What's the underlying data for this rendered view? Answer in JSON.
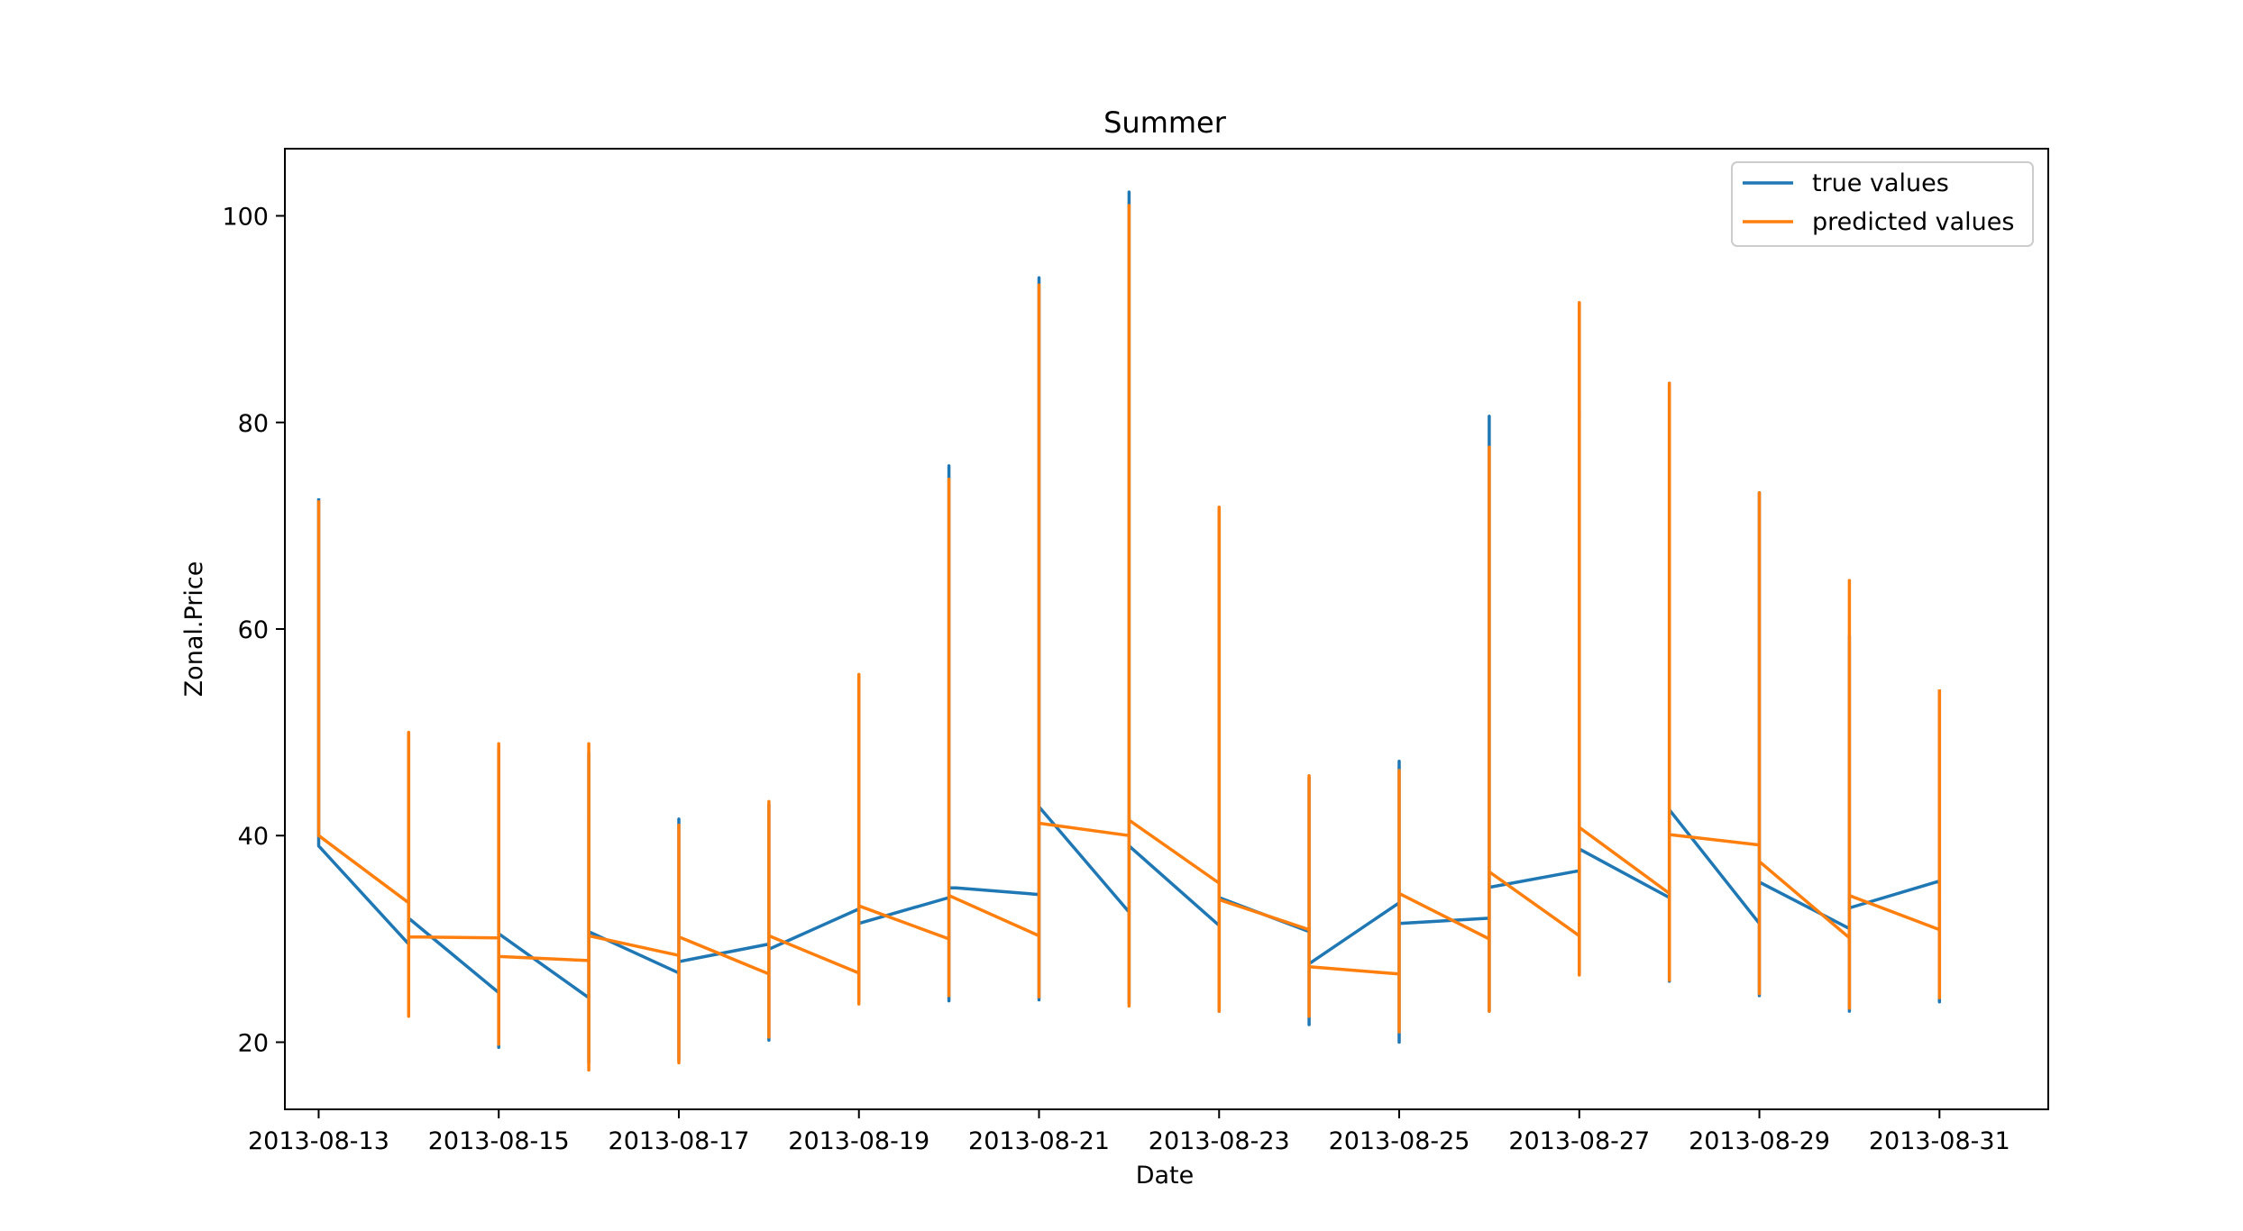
{
  "chart_data": {
    "type": "line",
    "title": "Summer",
    "xlabel": "Date",
    "ylabel": "Zonal.Price",
    "ylim": [
      13.5,
      106.5
    ],
    "xlim": [
      "2013-08-12 15:00",
      "2013-09-01 05:00"
    ],
    "grid": false,
    "legend_position": "upper right",
    "x_ticks": [
      "2013-08-13",
      "2013-08-15",
      "2013-08-17",
      "2013-08-19",
      "2013-08-21",
      "2013-08-23",
      "2013-08-25",
      "2013-08-27",
      "2013-08-29",
      "2013-08-31"
    ],
    "y_ticks": [
      20,
      40,
      60,
      80,
      100
    ],
    "series": [
      {
        "name": "true values",
        "color": "#1f77b4",
        "points": [
          [
            "2013-08-13 00:00",
            72.5
          ],
          [
            "2013-08-13 00:00",
            39.0
          ],
          [
            "2013-08-14 00:00",
            29.5
          ],
          [
            "2013-08-14 00:00",
            49.8
          ],
          [
            "2013-08-14 00:00",
            32.0
          ],
          [
            "2013-08-15 00:00",
            24.8
          ],
          [
            "2013-08-15 00:00",
            19.5
          ],
          [
            "2013-08-15 00:00",
            48.5
          ],
          [
            "2013-08-15 00:00",
            30.5
          ],
          [
            "2013-08-16 00:00",
            24.3
          ],
          [
            "2013-08-16 00:00",
            18.0
          ],
          [
            "2013-08-16 00:00",
            48.0
          ],
          [
            "2013-08-16 00:00",
            30.7
          ],
          [
            "2013-08-17 00:00",
            26.7
          ],
          [
            "2013-08-17 00:00",
            18.3
          ],
          [
            "2013-08-17 00:00",
            41.6
          ],
          [
            "2013-08-17 00:00",
            27.8
          ],
          [
            "2013-08-18 00:00",
            29.5
          ],
          [
            "2013-08-18 00:00",
            20.2
          ],
          [
            "2013-08-18 00:00",
            43.0
          ],
          [
            "2013-08-18 00:00",
            29.0
          ],
          [
            "2013-08-19 00:00",
            32.9
          ],
          [
            "2013-08-19 00:00",
            24.0
          ],
          [
            "2013-08-19 00:00",
            55.3
          ],
          [
            "2013-08-19 00:00",
            31.5
          ],
          [
            "2013-08-20 00:00",
            34.0
          ],
          [
            "2013-08-20 00:00",
            24.0
          ],
          [
            "2013-08-20 00:00",
            75.8
          ],
          [
            "2013-08-20 00:00",
            35.0
          ],
          [
            "2013-08-21 00:00",
            34.3
          ],
          [
            "2013-08-21 00:00",
            24.1
          ],
          [
            "2013-08-21 00:00",
            94.0
          ],
          [
            "2013-08-21 00:00",
            42.8
          ],
          [
            "2013-08-22 00:00",
            32.6
          ],
          [
            "2013-08-22 00:00",
            23.8
          ],
          [
            "2013-08-22 00:00",
            102.3
          ],
          [
            "2013-08-22 00:00",
            39.0
          ],
          [
            "2013-08-23 00:00",
            31.3
          ],
          [
            "2013-08-23 00:00",
            23.0
          ],
          [
            "2013-08-23 00:00",
            71.5
          ],
          [
            "2013-08-23 00:00",
            34.0
          ],
          [
            "2013-08-24 00:00",
            30.7
          ],
          [
            "2013-08-24 00:00",
            21.7
          ],
          [
            "2013-08-24 00:00",
            45.6
          ],
          [
            "2013-08-24 00:00",
            27.6
          ],
          [
            "2013-08-25 00:00",
            33.5
          ],
          [
            "2013-08-25 00:00",
            20.0
          ],
          [
            "2013-08-25 00:00",
            47.2
          ],
          [
            "2013-08-25 00:00",
            31.5
          ],
          [
            "2013-08-26 00:00",
            32.0
          ],
          [
            "2013-08-26 00:00",
            23.0
          ],
          [
            "2013-08-26 00:00",
            80.6
          ],
          [
            "2013-08-26 00:00",
            35.0
          ],
          [
            "2013-08-27 00:00",
            36.6
          ],
          [
            "2013-08-27 00:00",
            26.6
          ],
          [
            "2013-08-27 00:00",
            91.5
          ],
          [
            "2013-08-27 00:00",
            38.7
          ],
          [
            "2013-08-28 00:00",
            34.0
          ],
          [
            "2013-08-28 00:00",
            25.9
          ],
          [
            "2013-08-28 00:00",
            83.8
          ],
          [
            "2013-08-28 00:00",
            42.5
          ],
          [
            "2013-08-29 00:00",
            31.5
          ],
          [
            "2013-08-29 00:00",
            24.5
          ],
          [
            "2013-08-29 00:00",
            73.2
          ],
          [
            "2013-08-29 00:00",
            35.5
          ],
          [
            "2013-08-30 00:00",
            31.0
          ],
          [
            "2013-08-30 00:00",
            23.0
          ],
          [
            "2013-08-30 00:00",
            59.3
          ],
          [
            "2013-08-30 00:00",
            33.0
          ],
          [
            "2013-08-31 00:00",
            35.6
          ],
          [
            "2013-08-31 00:00",
            23.9
          ],
          [
            "2013-08-31 00:00",
            53.8
          ]
        ]
      },
      {
        "name": "predicted values",
        "color": "#ff7f0e",
        "points": [
          [
            "2013-08-13 00:00",
            72.3
          ],
          [
            "2013-08-13 00:00",
            40.0
          ],
          [
            "2013-08-14 00:00",
            33.5
          ],
          [
            "2013-08-14 00:00",
            22.5
          ],
          [
            "2013-08-14 00:00",
            50.0
          ],
          [
            "2013-08-14 00:00",
            30.2
          ],
          [
            "2013-08-15 00:00",
            30.1
          ],
          [
            "2013-08-15 00:00",
            19.8
          ],
          [
            "2013-08-15 00:00",
            48.9
          ],
          [
            "2013-08-15 00:00",
            28.3
          ],
          [
            "2013-08-16 00:00",
            27.9
          ],
          [
            "2013-08-16 00:00",
            17.3
          ],
          [
            "2013-08-16 00:00",
            48.9
          ],
          [
            "2013-08-16 00:00",
            30.3
          ],
          [
            "2013-08-17 00:00",
            28.4
          ],
          [
            "2013-08-17 00:00",
            18.0
          ],
          [
            "2013-08-17 00:00",
            41.0
          ],
          [
            "2013-08-17 00:00",
            30.2
          ],
          [
            "2013-08-18 00:00",
            26.6
          ],
          [
            "2013-08-18 00:00",
            20.5
          ],
          [
            "2013-08-18 00:00",
            43.3
          ],
          [
            "2013-08-18 00:00",
            30.3
          ],
          [
            "2013-08-19 00:00",
            26.7
          ],
          [
            "2013-08-19 00:00",
            23.7
          ],
          [
            "2013-08-19 00:00",
            55.6
          ],
          [
            "2013-08-19 00:00",
            33.2
          ],
          [
            "2013-08-20 00:00",
            30.0
          ],
          [
            "2013-08-20 00:00",
            24.5
          ],
          [
            "2013-08-20 00:00",
            74.5
          ],
          [
            "2013-08-20 00:00",
            34.2
          ],
          [
            "2013-08-21 00:00",
            30.3
          ],
          [
            "2013-08-21 00:00",
            24.4
          ],
          [
            "2013-08-21 00:00",
            93.3
          ],
          [
            "2013-08-21 00:00",
            41.2
          ],
          [
            "2013-08-22 00:00",
            40.0
          ],
          [
            "2013-08-22 00:00",
            23.5
          ],
          [
            "2013-08-22 00:00",
            101.0
          ],
          [
            "2013-08-22 00:00",
            41.5
          ],
          [
            "2013-08-23 00:00",
            35.4
          ],
          [
            "2013-08-23 00:00",
            23.0
          ],
          [
            "2013-08-23 00:00",
            71.8
          ],
          [
            "2013-08-23 00:00",
            33.8
          ],
          [
            "2013-08-24 00:00",
            30.9
          ],
          [
            "2013-08-24 00:00",
            22.5
          ],
          [
            "2013-08-24 00:00",
            45.8
          ],
          [
            "2013-08-24 00:00",
            27.3
          ],
          [
            "2013-08-25 00:00",
            26.6
          ],
          [
            "2013-08-25 00:00",
            21.0
          ],
          [
            "2013-08-25 00:00",
            46.3
          ],
          [
            "2013-08-25 00:00",
            34.4
          ],
          [
            "2013-08-26 00:00",
            30.0
          ],
          [
            "2013-08-26 00:00",
            23.0
          ],
          [
            "2013-08-26 00:00",
            77.6
          ],
          [
            "2013-08-26 00:00",
            36.5
          ],
          [
            "2013-08-27 00:00",
            30.3
          ],
          [
            "2013-08-27 00:00",
            26.5
          ],
          [
            "2013-08-27 00:00",
            91.6
          ],
          [
            "2013-08-27 00:00",
            40.8
          ],
          [
            "2013-08-28 00:00",
            34.4
          ],
          [
            "2013-08-28 00:00",
            26.0
          ],
          [
            "2013-08-28 00:00",
            83.8
          ],
          [
            "2013-08-28 00:00",
            40.1
          ],
          [
            "2013-08-29 00:00",
            39.1
          ],
          [
            "2013-08-29 00:00",
            24.7
          ],
          [
            "2013-08-29 00:00",
            73.2
          ],
          [
            "2013-08-29 00:00",
            37.5
          ],
          [
            "2013-08-30 00:00",
            30.1
          ],
          [
            "2013-08-30 00:00",
            23.3
          ],
          [
            "2013-08-30 00:00",
            64.7
          ],
          [
            "2013-08-30 00:00",
            34.2
          ],
          [
            "2013-08-31 00:00",
            30.9
          ],
          [
            "2013-08-31 00:00",
            24.3
          ],
          [
            "2013-08-31 00:00",
            54.0
          ]
        ]
      }
    ]
  }
}
